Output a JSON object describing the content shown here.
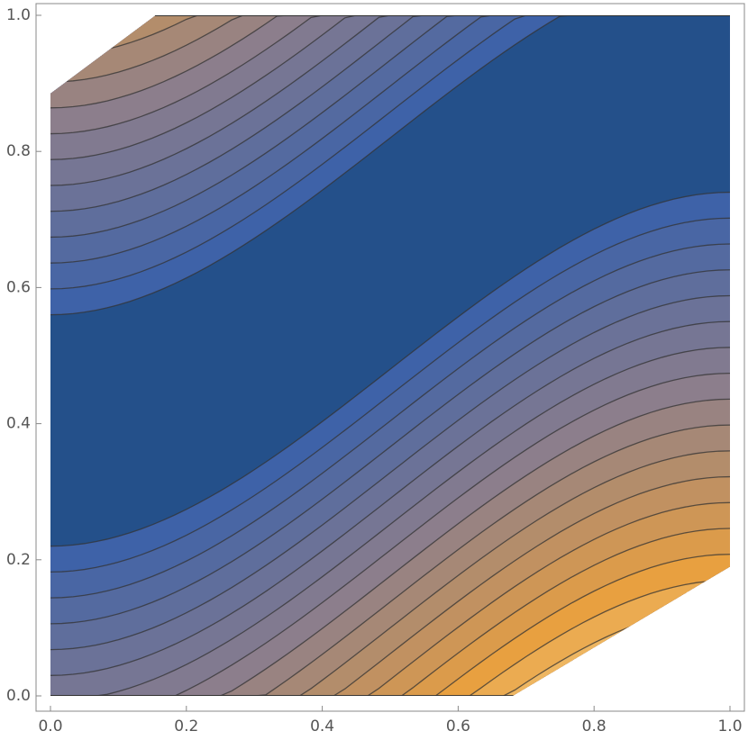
{
  "chart_data": {
    "type": "contour",
    "xlim": [
      0,
      1
    ],
    "ylim": [
      0,
      1
    ],
    "xticks": [
      {
        "value": 0,
        "label": "0.0"
      },
      0.2,
      0.4,
      0.6,
      0.8,
      {
        "value": 1,
        "label": "1.0"
      }
    ],
    "yticks": [
      {
        "value": 0,
        "label": "0.0"
      },
      0.2,
      0.4,
      0.6,
      0.8,
      {
        "value": 1,
        "label": "1.0"
      }
    ]
  }
}
